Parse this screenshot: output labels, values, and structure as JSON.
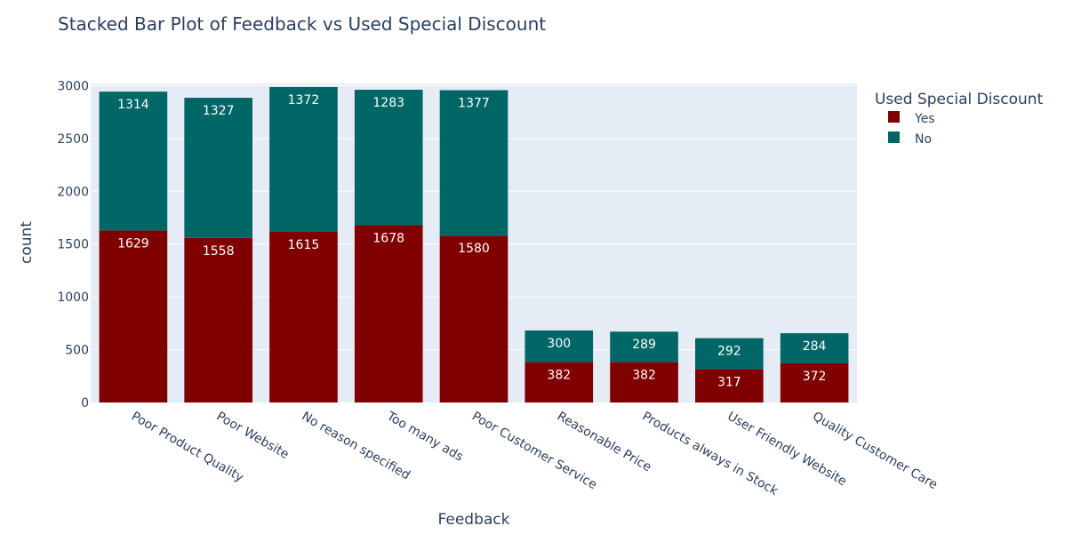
{
  "chart_data": {
    "type": "bar",
    "barmode": "stack",
    "title": "Stacked Bar Plot of Feedback vs Used Special Discount",
    "xlabel": "Feedback",
    "ylabel": "count",
    "ylim": [
      0,
      3000
    ],
    "y_ticks": [
      "0",
      "500",
      "1000",
      "1500",
      "2000",
      "2500",
      "3000"
    ],
    "grid": true,
    "legend_title": "Used Special Discount",
    "legend_position": "top-right",
    "categories": [
      "Poor Product Quality",
      "Poor Website",
      "No reason specified",
      "Too many ads",
      "Poor Customer Service",
      "Reasonable Price",
      "Products always in Stock",
      "User Friendly Website",
      "Quality Customer Care"
    ],
    "series": [
      {
        "name": "Yes",
        "color": "#800000",
        "values": [
          1629,
          1558,
          1615,
          1678,
          1580,
          382,
          382,
          317,
          372
        ]
      },
      {
        "name": "No",
        "color": "#006666",
        "values": [
          1314,
          1327,
          1372,
          1283,
          1377,
          300,
          289,
          292,
          284
        ]
      }
    ],
    "colors": {
      "plot_bg": "#e5ecf6",
      "grid": "#ffffff",
      "text": "#2a3f5f"
    }
  }
}
